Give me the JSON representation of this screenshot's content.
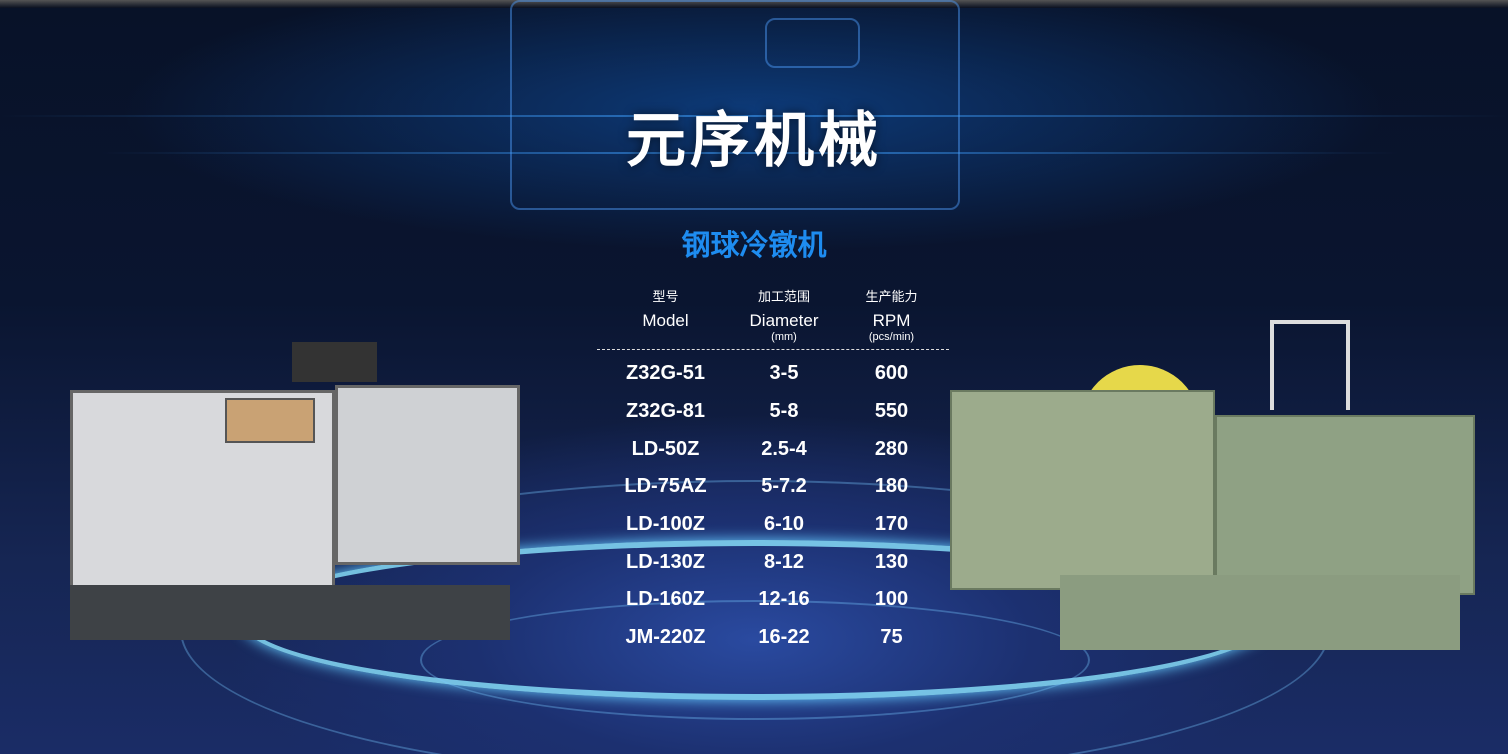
{
  "header": {
    "title": "元序机械"
  },
  "section": {
    "title": "钢球冷镦机"
  },
  "table": {
    "columns": [
      {
        "cn": "型号",
        "en": "Model",
        "unit": ""
      },
      {
        "cn": "加工范围",
        "en": "Diameter",
        "unit": "(mm)"
      },
      {
        "cn": "生产能力",
        "en": "RPM",
        "unit": "(pcs/min)"
      }
    ],
    "rows": [
      {
        "model": "Z32G-51",
        "diameter": "3-5",
        "rpm": "600"
      },
      {
        "model": "Z32G-81",
        "diameter": "5-8",
        "rpm": "550"
      },
      {
        "model": "LD-50Z",
        "diameter": "2.5-4",
        "rpm": "280"
      },
      {
        "model": "LD-75AZ",
        "diameter": "5-7.2",
        "rpm": "180"
      },
      {
        "model": "LD-100Z",
        "diameter": "6-10",
        "rpm": "170"
      },
      {
        "model": "LD-130Z",
        "diameter": "8-12",
        "rpm": "130"
      },
      {
        "model": "LD-160Z",
        "diameter": "12-16",
        "rpm": "100"
      },
      {
        "model": "JM-220Z",
        "diameter": "16-22",
        "rpm": "75"
      }
    ]
  },
  "colors": {
    "accent": "#1e8cf0",
    "text": "#ffffff"
  }
}
